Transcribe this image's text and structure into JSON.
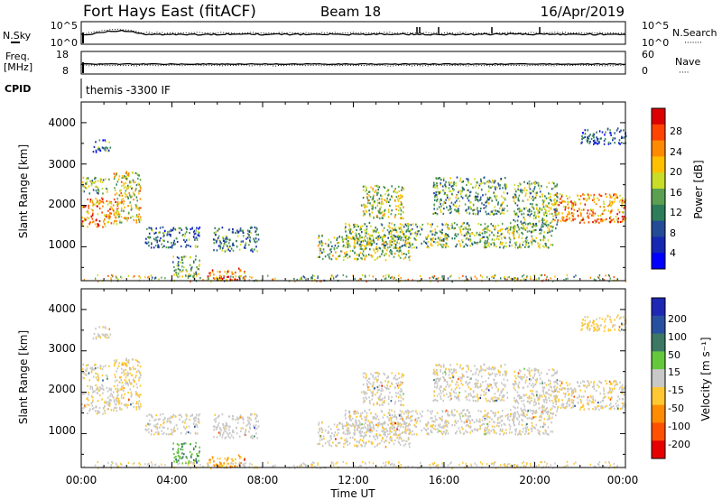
{
  "header": {
    "station": "Fort Hays East (fitACF)",
    "beam": "Beam 18",
    "date": "16/Apr/2019"
  },
  "strip1": {
    "left_label": "N.Sky",
    "left_ticks": [
      "10^5",
      "10^0"
    ],
    "right_label": "N.Search",
    "right_ticks": [
      "10^5",
      "10^0"
    ],
    "right_dots": "·······"
  },
  "strip2": {
    "left_label_line1": "Freq.",
    "left_label_line2": "[MHz]",
    "left_ticks": [
      "18",
      "8"
    ],
    "right_label": "Nave",
    "right_ticks": [
      "60",
      "0"
    ],
    "right_dots": "····"
  },
  "strip3": {
    "left_label": "CPID",
    "text": "themis -3300 IF"
  },
  "power_panel": {
    "ylabel": "Slant Range [km]",
    "yticks": [
      "4000",
      "3000",
      "2000",
      "1000"
    ],
    "colorbar_label": "Power [dB]",
    "colorbar_ticks": [
      "28",
      "24",
      "20",
      "16",
      "12",
      "8",
      "4"
    ],
    "colorbar_colors": [
      "#dd0000",
      "#ff4400",
      "#ff8a00",
      "#ffc000",
      "#c8dc28",
      "#5aa050",
      "#2d7d5a",
      "#234b96",
      "#1428b4",
      "#0000ff"
    ]
  },
  "velocity_panel": {
    "ylabel": "Slant Range [km]",
    "yticks": [
      "4000",
      "3000",
      "2000",
      "1000"
    ],
    "colorbar_label": "Velocity [m s⁻¹]",
    "colorbar_ticks": [
      "200",
      "100",
      "50",
      "15",
      "-15",
      "-50",
      "-100",
      "-200"
    ],
    "colorbar_colors": [
      "#1e28b4",
      "#2850a0",
      "#3c7864",
      "#64c83c",
      "#c8c8c8",
      "#ffc832",
      "#ff8c00",
      "#ff5000",
      "#e60000"
    ]
  },
  "xaxis": {
    "label": "Time UT",
    "ticks": [
      "00:00",
      "04:00",
      "08:00",
      "12:00",
      "16:00",
      "20:00",
      "00:00"
    ]
  },
  "chart_data": {
    "type": "heatmap",
    "title": "Fort Hays East (fitACF)  Beam 18  16/Apr/2019",
    "xlabel": "Time UT",
    "ylabel": "Slant Range [km]",
    "xlim": [
      0,
      24
    ],
    "ylim": [
      180,
      4500
    ],
    "power_colorbar": {
      "label": "Power [dB]",
      "range": [
        0,
        30
      ]
    },
    "velocity_colorbar": {
      "label": "Velocity [m s⁻¹]",
      "range": [
        -250,
        250
      ]
    },
    "echo_regions": [
      {
        "t": [
          0.0,
          1.6
        ],
        "r": [
          1500,
          2200
        ],
        "power_db": 22,
        "velocity": -10
      },
      {
        "t": [
          1.4,
          2.6
        ],
        "r": [
          1600,
          2850
        ],
        "power_db": 18,
        "velocity": -30
      },
      {
        "t": [
          0.0,
          1.2
        ],
        "r": [
          2300,
          2700
        ],
        "power_db": 14,
        "velocity": -20
      },
      {
        "t": [
          0.5,
          1.3
        ],
        "r": [
          3300,
          3600
        ],
        "power_db": 9,
        "velocity": -20
      },
      {
        "t": [
          2.8,
          5.2
        ],
        "r": [
          1000,
          1500
        ],
        "power_db": 9,
        "velocity": -5
      },
      {
        "t": [
          4.0,
          5.2
        ],
        "r": [
          300,
          800
        ],
        "power_db": 14,
        "velocity": 70
      },
      {
        "t": [
          5.5,
          7.2
        ],
        "r": [
          200,
          500
        ],
        "power_db": 24,
        "velocity": -80
      },
      {
        "t": [
          5.8,
          7.8
        ],
        "r": [
          900,
          1500
        ],
        "power_db": 10,
        "velocity": -5
      },
      {
        "t": [
          10.4,
          14.5
        ],
        "r": [
          700,
          1300
        ],
        "power_db": 15,
        "velocity": -10
      },
      {
        "t": [
          11.6,
          20.8
        ],
        "r": [
          1000,
          1600
        ],
        "power_db": 14,
        "velocity": -10
      },
      {
        "t": [
          12.3,
          14.2
        ],
        "r": [
          1700,
          2500
        ],
        "power_db": 16,
        "velocity": -10
      },
      {
        "t": [
          15.5,
          18.8
        ],
        "r": [
          1800,
          2700
        ],
        "power_db": 12,
        "velocity": -10
      },
      {
        "t": [
          19.0,
          21.0
        ],
        "r": [
          1400,
          2600
        ],
        "power_db": 14,
        "velocity": -10
      },
      {
        "t": [
          20.8,
          24.0
        ],
        "r": [
          1600,
          2300
        ],
        "power_db": 22,
        "velocity": -20
      },
      {
        "t": [
          22.0,
          24.0
        ],
        "r": [
          3500,
          3900
        ],
        "power_db": 8,
        "velocity": -40
      }
    ]
  }
}
